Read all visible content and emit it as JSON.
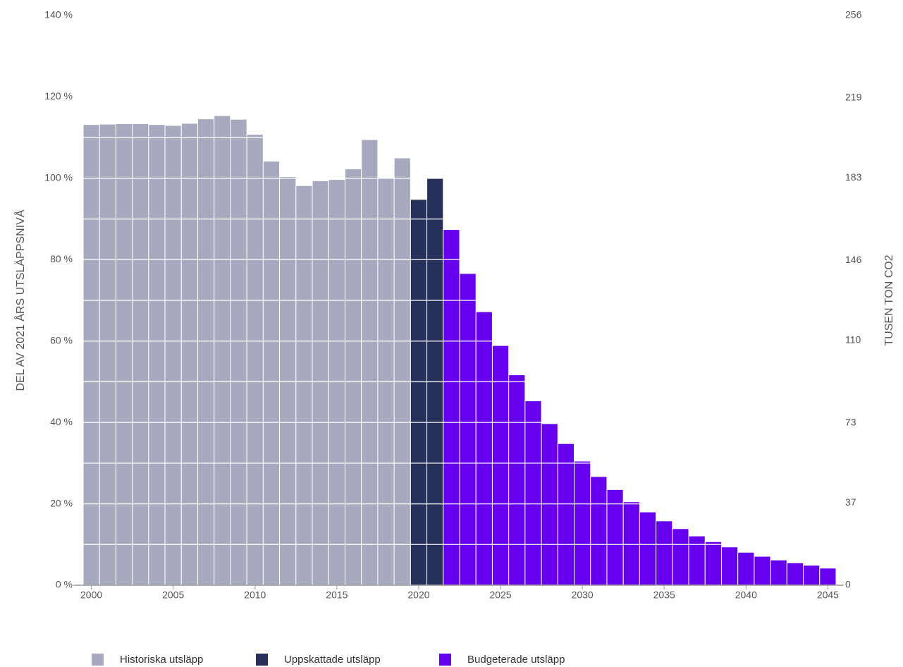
{
  "chart_data": {
    "type": "bar",
    "ylabel": "DEL AV 2021 ÅRS UTSLÄPPSNIVÅ",
    "y2label": "TUSEN TON CO2",
    "x": [
      2000,
      2001,
      2002,
      2003,
      2004,
      2005,
      2006,
      2007,
      2008,
      2009,
      2010,
      2011,
      2012,
      2013,
      2014,
      2015,
      2016,
      2017,
      2018,
      2019,
      2020,
      2021,
      2022,
      2023,
      2024,
      2025,
      2026,
      2027,
      2028,
      2029,
      2030,
      2031,
      2032,
      2033,
      2034,
      2035,
      2036,
      2037,
      2038,
      2039,
      2040,
      2041,
      2042,
      2043,
      2044,
      2045
    ],
    "xlim": [
      1999.5,
      2045.5
    ],
    "xticks": [
      2000,
      2005,
      2010,
      2015,
      2020,
      2025,
      2030,
      2035,
      2040,
      2045
    ],
    "ylim": [
      0,
      140
    ],
    "yticks": [
      {
        "value": 0,
        "label": "0 %"
      },
      {
        "value": 20,
        "label": "20 %"
      },
      {
        "value": 40,
        "label": "40 %"
      },
      {
        "value": 60,
        "label": "60 %"
      },
      {
        "value": 80,
        "label": "80 %"
      },
      {
        "value": 100,
        "label": "100 %"
      },
      {
        "value": 120,
        "label": "120 %"
      },
      {
        "value": 140,
        "label": "140 %"
      }
    ],
    "yminorticks": [
      10,
      30,
      50,
      70,
      90,
      110,
      130
    ],
    "y2lim": [
      0,
      256
    ],
    "y2ticks": [
      0,
      37,
      73,
      110,
      146,
      183,
      219,
      256
    ],
    "grid": true,
    "legend": "bottom-left",
    "series": [
      {
        "name": "Historiska utsläpp",
        "color": "#a7a9be",
        "values": [
          113.2,
          113.3,
          113.4,
          113.4,
          113.2,
          113.0,
          113.5,
          114.6,
          115.4,
          114.5,
          110.8,
          104.2,
          100.4,
          98.2,
          99.4,
          99.7,
          102.3,
          109.5,
          100.1,
          105.0,
          null,
          null,
          null,
          null,
          null,
          null,
          null,
          null,
          null,
          null,
          null,
          null,
          null,
          null,
          null,
          null,
          null,
          null,
          null,
          null,
          null,
          null,
          null,
          null,
          null,
          null
        ]
      },
      {
        "name": "Uppskattade utsläpp",
        "color": "#26305a",
        "values": [
          null,
          null,
          null,
          null,
          null,
          null,
          null,
          null,
          null,
          null,
          null,
          null,
          null,
          null,
          null,
          null,
          null,
          null,
          null,
          null,
          94.8,
          100,
          null,
          null,
          null,
          null,
          null,
          null,
          null,
          null,
          null,
          null,
          null,
          null,
          null,
          null,
          null,
          null,
          null,
          null,
          null,
          null,
          null,
          null,
          null,
          null
        ]
      },
      {
        "name": "Budgeterade utsläpp",
        "color": "#6600ee",
        "values": [
          null,
          null,
          null,
          null,
          null,
          null,
          null,
          null,
          null,
          null,
          null,
          null,
          null,
          null,
          null,
          null,
          null,
          null,
          null,
          null,
          null,
          null,
          87.4,
          76.6,
          67.2,
          58.9,
          51.7,
          45.3,
          39.7,
          34.8,
          30.5,
          26.7,
          23.5,
          20.5,
          18.0,
          15.8,
          13.9,
          12.1,
          10.7,
          9.4,
          8.1,
          7.1,
          6.2,
          5.5,
          4.9,
          4.2
        ]
      }
    ]
  }
}
